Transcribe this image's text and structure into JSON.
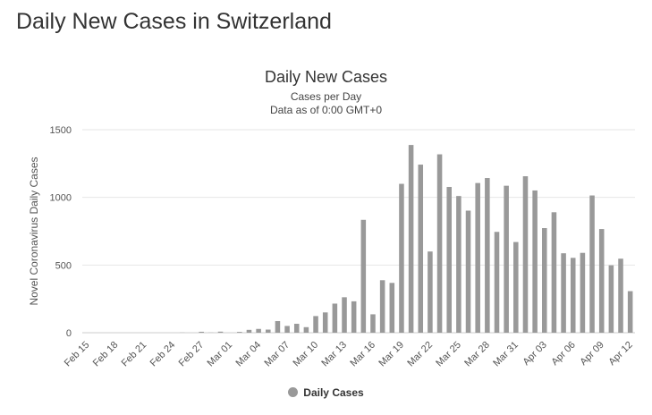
{
  "page": {
    "heading": "Daily New Cases in Switzerland"
  },
  "chart_data": {
    "type": "bar",
    "title": "Daily New Cases",
    "subtitle_lines": [
      "Cases per Day",
      "Data as of 0:00 GMT+0"
    ],
    "ylabel": "Novel Coronavirus Daily Cases",
    "xlabel": "",
    "ylim": [
      0,
      1500
    ],
    "yticks": [
      0,
      500,
      1000,
      1500
    ],
    "grid": true,
    "legend_position": "bottom-center",
    "bar_color": "#999999",
    "categories": [
      "Feb 15",
      "Feb 16",
      "Feb 17",
      "Feb 18",
      "Feb 19",
      "Feb 20",
      "Feb 21",
      "Feb 22",
      "Feb 23",
      "Feb 24",
      "Feb 25",
      "Feb 26",
      "Feb 27",
      "Feb 28",
      "Feb 29",
      "Mar 01",
      "Mar 02",
      "Mar 03",
      "Mar 04",
      "Mar 05",
      "Mar 06",
      "Mar 07",
      "Mar 08",
      "Mar 09",
      "Mar 10",
      "Mar 11",
      "Mar 12",
      "Mar 13",
      "Mar 14",
      "Mar 15",
      "Mar 16",
      "Mar 17",
      "Mar 18",
      "Mar 19",
      "Mar 20",
      "Mar 21",
      "Mar 22",
      "Mar 23",
      "Mar 24",
      "Mar 25",
      "Mar 26",
      "Mar 27",
      "Mar 28",
      "Mar 29",
      "Mar 30",
      "Mar 31",
      "Apr 01",
      "Apr 02",
      "Apr 03",
      "Apr 04",
      "Apr 05",
      "Apr 06",
      "Apr 07",
      "Apr 08",
      "Apr 09",
      "Apr 10",
      "Apr 11",
      "Apr 12"
    ],
    "tick_labels": [
      "Feb 15",
      "Feb 18",
      "Feb 21",
      "Feb 24",
      "Feb 27",
      "Mar 01",
      "Mar 04",
      "Mar 07",
      "Mar 10",
      "Mar 13",
      "Mar 16",
      "Mar 19",
      "Mar 22",
      "Mar 25",
      "Mar 28",
      "Mar 31",
      "Apr 03",
      "Apr 06",
      "Apr 09",
      "Apr 12"
    ],
    "series": [
      {
        "name": "Daily Cases",
        "values": [
          0,
          0,
          0,
          0,
          0,
          0,
          0,
          0,
          0,
          0,
          1,
          0,
          7,
          1,
          8,
          0,
          6,
          21,
          28,
          23,
          86,
          50,
          66,
          41,
          123,
          150,
          215,
          262,
          232,
          834,
          136,
          388,
          368,
          1100,
          1387,
          1242,
          600,
          1318,
          1077,
          1010,
          902,
          1106,
          1143,
          745,
          1086,
          670,
          1156,
          1051,
          773,
          890,
          587,
          553,
          590,
          1014,
          766,
          498,
          547,
          307
        ]
      }
    ]
  }
}
